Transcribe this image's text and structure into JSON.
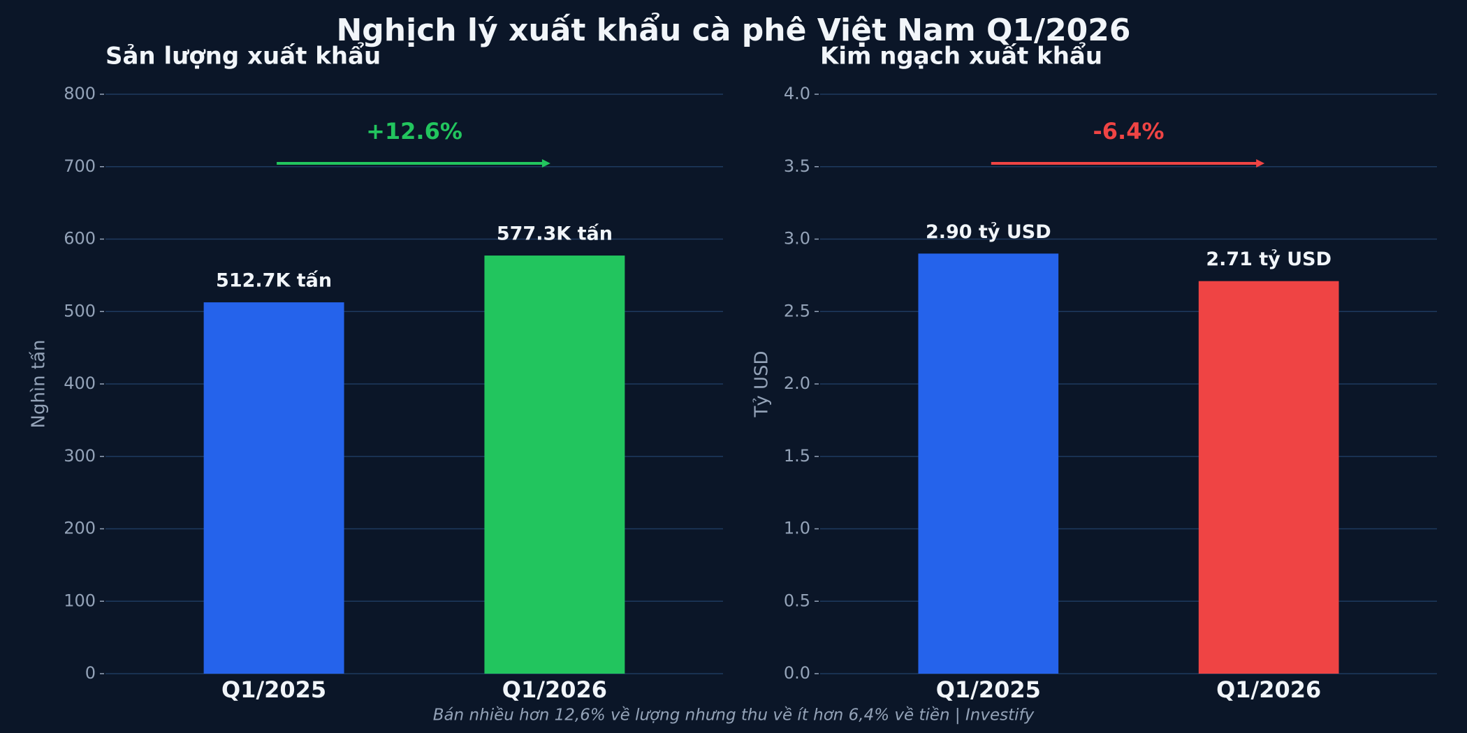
{
  "title": "Nghịch lý xuất khẩu cà phê Việt Nam Q1/2026",
  "footnote": "Bán nhiều hơn 12,6% về lượng nhưng thu về ít hơn 6,4% về tiền  |  Investify",
  "chart_data": [
    {
      "type": "bar",
      "title": "Sản lượng xuất khẩu",
      "ylabel": "Nghìn tấn",
      "categories": [
        "Q1/2025",
        "Q1/2026"
      ],
      "values": [
        512.7,
        577.3
      ],
      "value_labels": [
        "512.7K tấn",
        "577.3K tấn"
      ],
      "colors": [
        "#2563eb",
        "#22c55e"
      ],
      "ylim": [
        0,
        800
      ],
      "yticks": [
        0,
        100,
        200,
        300,
        400,
        500,
        600,
        700,
        800
      ],
      "grid": true,
      "annotation": {
        "text": "+12.6%",
        "color": "#22c55e"
      }
    },
    {
      "type": "bar",
      "title": "Kim ngạch xuất khẩu",
      "ylabel": "Tỷ USD",
      "categories": [
        "Q1/2025",
        "Q1/2026"
      ],
      "values": [
        2.9,
        2.71
      ],
      "value_labels": [
        "2.90 tỷ USD",
        "2.71 tỷ USD"
      ],
      "colors": [
        "#2563eb",
        "#ef4444"
      ],
      "ylim": [
        0,
        4
      ],
      "yticks": [
        {
          "value": 0,
          "label": "0.0"
        },
        0.5,
        {
          "value": 1,
          "label": "1.0"
        },
        1.5,
        {
          "value": 2,
          "label": "2.0"
        },
        2.5,
        {
          "value": 3,
          "label": "3.0"
        },
        3.5,
        {
          "value": 4,
          "label": "4.0"
        }
      ],
      "grid": true,
      "annotation": {
        "text": "-6.4%",
        "color": "#ef4444"
      }
    }
  ]
}
